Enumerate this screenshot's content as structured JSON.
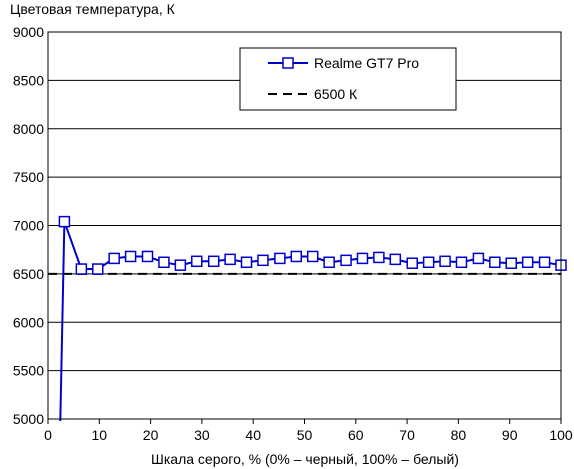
{
  "chart_data": {
    "type": "line",
    "title": "Цветовая температура, К",
    "xlabel": "Шкала серого, % (0% – черный, 100% – белый)",
    "ylabel": "",
    "xlim": [
      0,
      100
    ],
    "ylim": [
      5000,
      9000
    ],
    "x_ticks": [
      0,
      10,
      20,
      30,
      40,
      50,
      60,
      70,
      80,
      90,
      100
    ],
    "y_ticks": [
      5000,
      5500,
      6000,
      6500,
      7000,
      7500,
      8000,
      8500,
      9000
    ],
    "grid": "horizontal",
    "legend_position": "top-right",
    "series": [
      {
        "name": "Realme GT7 Pro",
        "color": "#0000cc",
        "marker": "square",
        "x": [
          3.2,
          6.5,
          9.7,
          12.9,
          16.1,
          19.4,
          22.6,
          25.8,
          29.0,
          32.3,
          35.5,
          38.7,
          41.9,
          45.2,
          48.4,
          51.6,
          54.8,
          58.1,
          61.3,
          64.5,
          67.7,
          71.0,
          74.2,
          77.4,
          80.6,
          83.9,
          87.1,
          90.3,
          93.5,
          96.8,
          100
        ],
        "y": [
          7040,
          6550,
          6550,
          6660,
          6680,
          6680,
          6620,
          6590,
          6630,
          6630,
          6650,
          6620,
          6640,
          6660,
          6680,
          6680,
          6620,
          6640,
          6660,
          6670,
          6650,
          6610,
          6620,
          6630,
          6620,
          6660,
          6620,
          6610,
          6620,
          6620,
          6590
        ]
      },
      {
        "name": "6500 К",
        "color": "#000000",
        "style": "dashed",
        "x": [
          0,
          100
        ],
        "y": [
          6500,
          6500
        ]
      }
    ]
  }
}
